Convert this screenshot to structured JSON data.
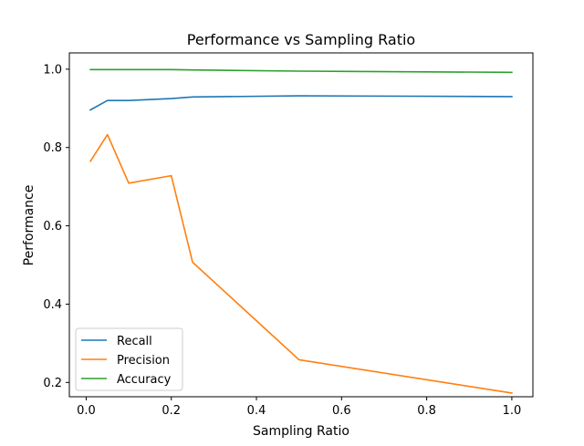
{
  "chart_data": {
    "type": "line",
    "title": "Performance vs Sampling Ratio",
    "xlabel": "Sampling Ratio",
    "ylabel": "Performance",
    "xlim": [
      -0.0395,
      1.0495
    ],
    "ylim": [
      0.1635,
      1.0416
    ],
    "xticks": [
      0.0,
      0.2,
      0.4,
      0.6,
      0.8,
      1.0
    ],
    "xtick_labels": [
      "0.0",
      "0.2",
      "0.4",
      "0.6",
      "0.8",
      "1.0"
    ],
    "yticks": [
      0.2,
      0.4,
      0.6,
      0.8,
      1.0
    ],
    "ytick_labels": [
      "0.2",
      "0.4",
      "0.6",
      "0.8",
      "1.0"
    ],
    "grid": false,
    "legend_position": "lower-left",
    "x": [
      0.01,
      0.05,
      0.1,
      0.2,
      0.25,
      0.5,
      1.0
    ],
    "series": [
      {
        "name": "Recall",
        "color": "#1f77b4",
        "values": [
          0.896,
          0.92,
          0.92,
          0.925,
          0.929,
          0.932,
          0.93
        ]
      },
      {
        "name": "Precision",
        "color": "#ff7f0e",
        "values": [
          0.765,
          0.833,
          0.709,
          0.728,
          0.507,
          0.258,
          0.173
        ]
      },
      {
        "name": "Accuracy",
        "color": "#2ca02c",
        "values": [
          0.999,
          0.999,
          0.999,
          0.999,
          0.998,
          0.995,
          0.992
        ]
      }
    ]
  }
}
